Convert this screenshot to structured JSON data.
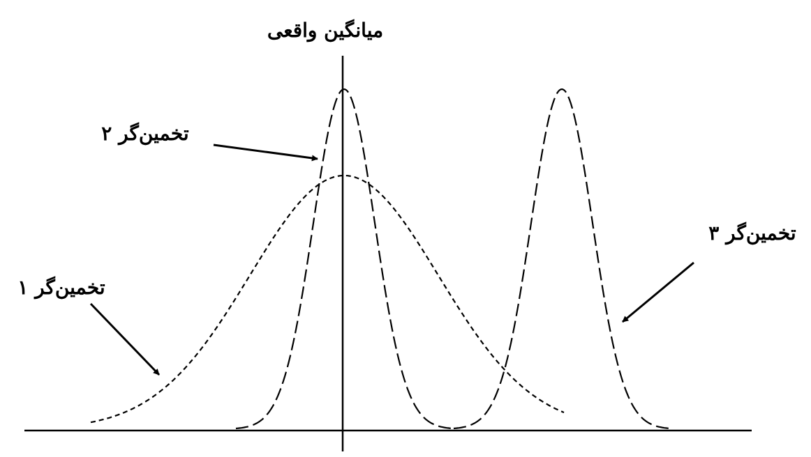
{
  "labels": {
    "true_mean": "میانگین واقعی",
    "estimator_1": "تخمین‌گر ۱",
    "estimator_2": "تخمین‌گر ۲",
    "estimator_3": "تخمین‌گر ۳"
  },
  "colors": {
    "stroke": "#000000",
    "background": "#ffffff"
  },
  "curves": [
    {
      "id": "estimator-1",
      "shape": "wide bell centered on true mean",
      "line_style": "short-dash"
    },
    {
      "id": "estimator-2",
      "shape": "narrow tall bell centered on true mean",
      "line_style": "long-dash"
    },
    {
      "id": "estimator-3",
      "shape": "narrow tall bell offset to the right",
      "line_style": "long-dash"
    }
  ]
}
